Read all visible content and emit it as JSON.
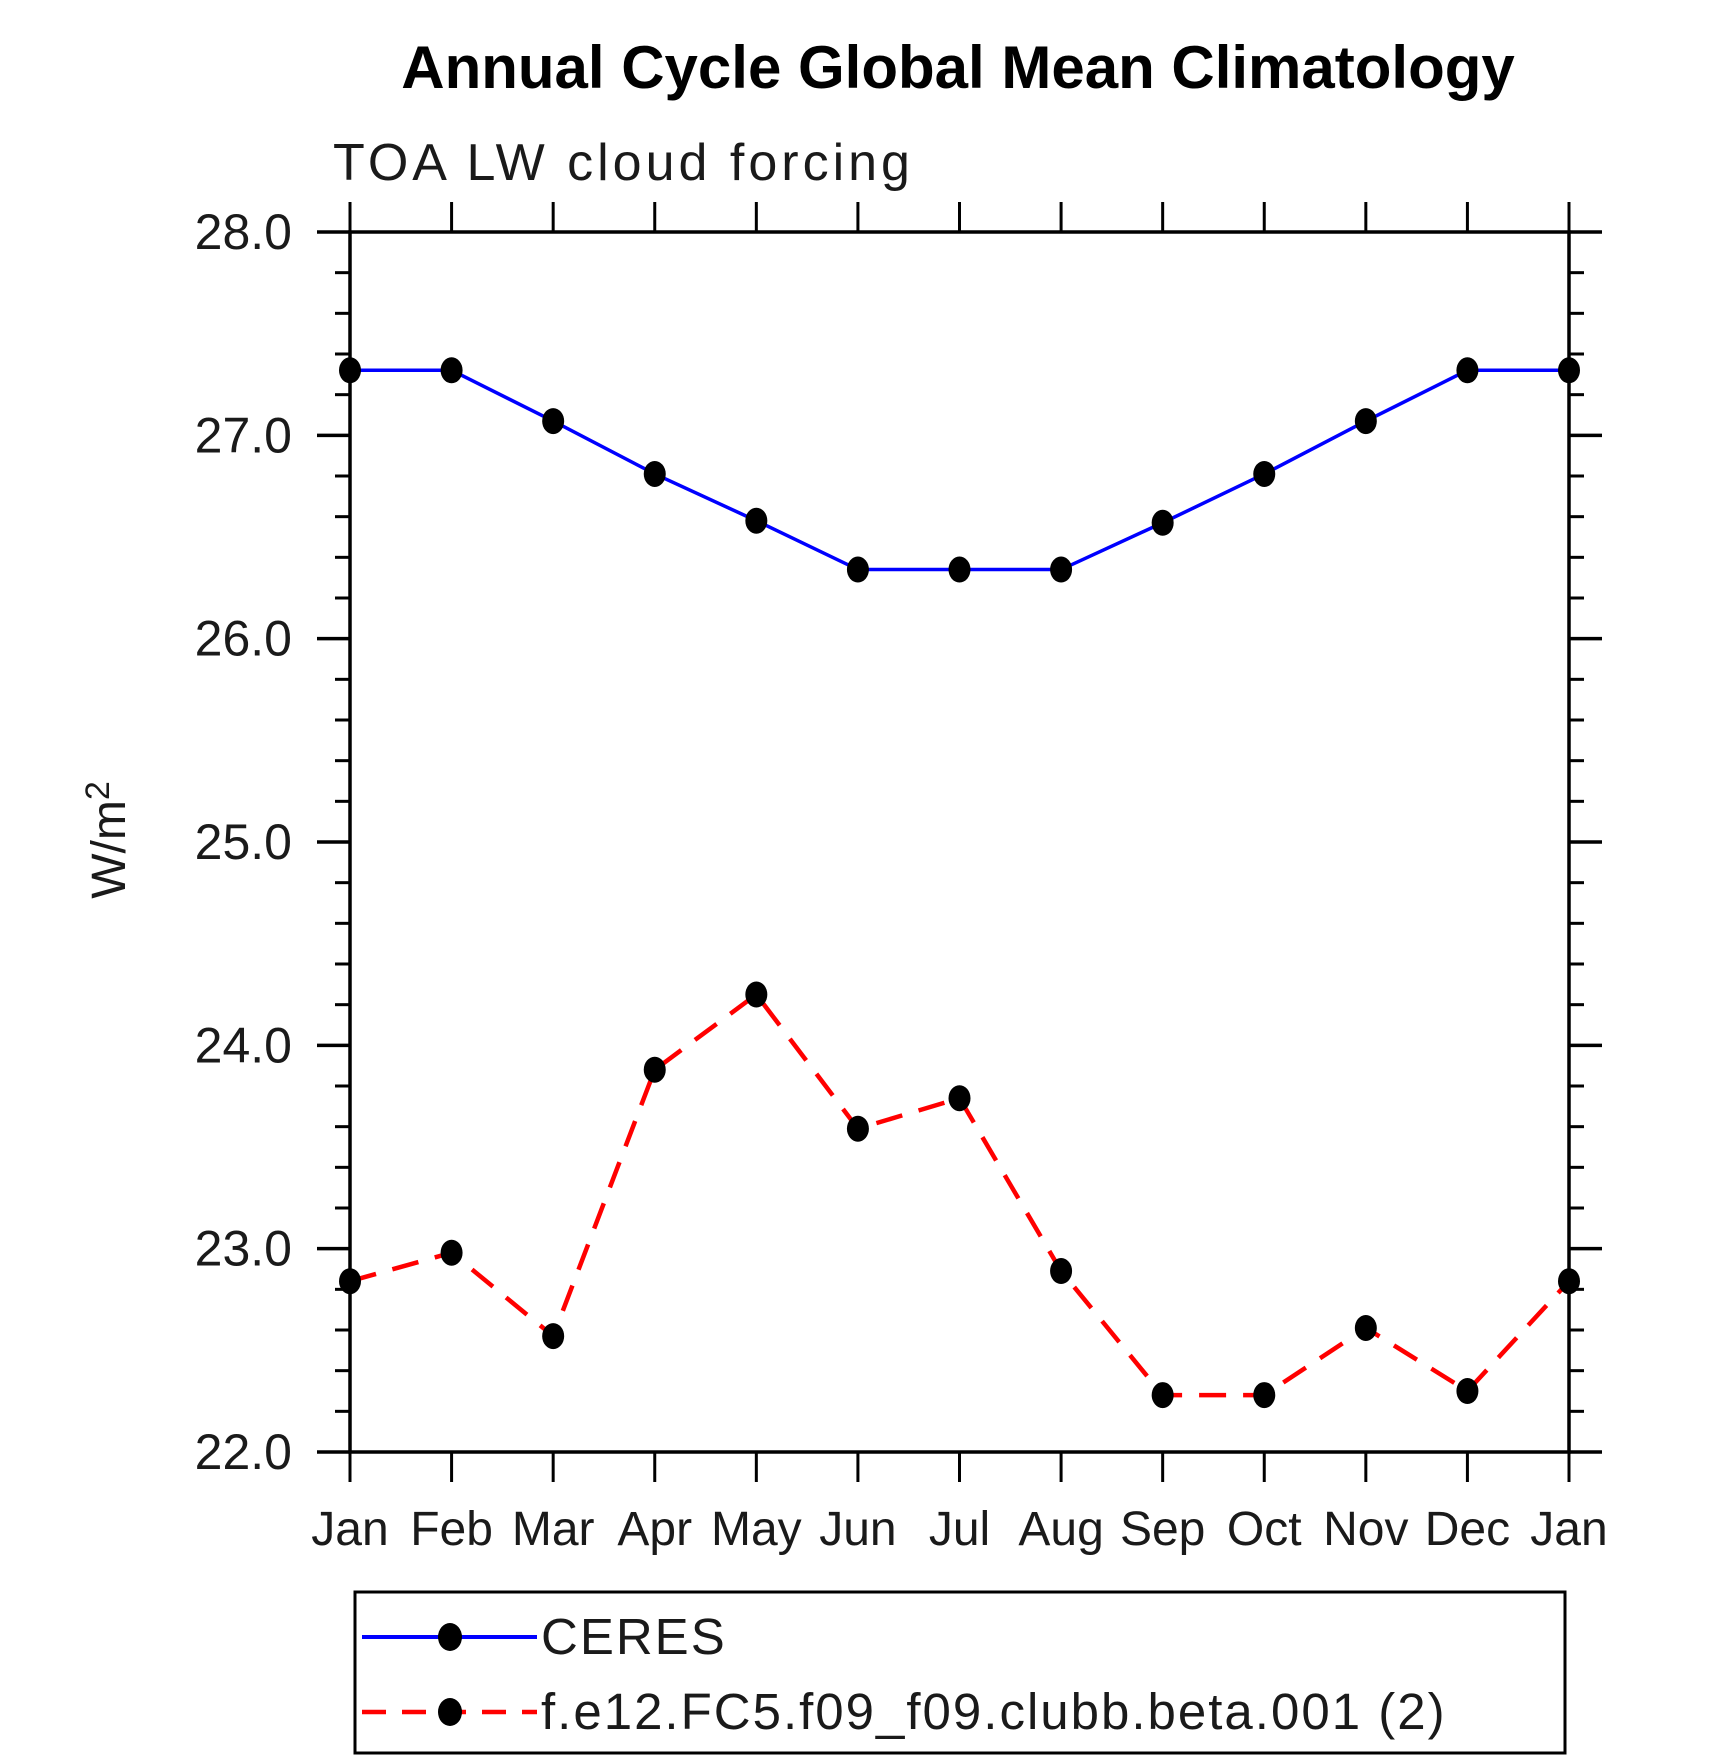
{
  "page": {
    "background_color": "#ffffff",
    "axis_color": "#000000"
  },
  "chart_data": {
    "type": "line",
    "title": "Annual Cycle Global Mean Climatology",
    "subtitle": "TOA LW cloud forcing",
    "ylabel": "W/m²",
    "xlabel": "",
    "ylim": [
      22.0,
      28.0
    ],
    "y_major_step": 1.0,
    "y_minor_step": 0.2,
    "grid": "off",
    "legend_position": "bottom",
    "categories": [
      "Jan",
      "Feb",
      "Mar",
      "Apr",
      "May",
      "Jun",
      "Jul",
      "Aug",
      "Sep",
      "Oct",
      "Nov",
      "Dec",
      "Jan"
    ],
    "y_tick_labels": [
      "28.0",
      "27.0",
      "26.0",
      "25.0",
      "24.0",
      "23.0",
      "22.0"
    ],
    "series": [
      {
        "name": "CERES",
        "color": "#0000ff",
        "line_style": "solid",
        "marker": "filled-black-circle",
        "values": [
          27.32,
          27.32,
          27.07,
          26.81,
          26.58,
          26.34,
          26.34,
          26.34,
          26.57,
          26.81,
          27.07,
          27.32,
          27.32
        ]
      },
      {
        "name": "f.e12.FC5.f09_f09.clubb.beta.001 (2)",
        "color": "#ff0000",
        "line_style": "dashed",
        "marker": "filled-black-circle",
        "values": [
          22.84,
          22.98,
          22.57,
          23.88,
          24.25,
          23.59,
          23.74,
          22.89,
          22.28,
          22.28,
          22.61,
          22.3,
          22.84
        ]
      }
    ]
  }
}
